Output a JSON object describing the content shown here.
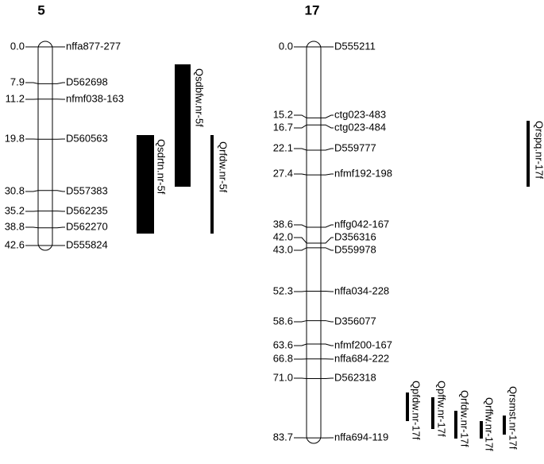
{
  "groups": [
    {
      "title": "5",
      "markers": [
        {
          "position": "0.0",
          "name": "nffa877-277"
        },
        {
          "position": "7.9",
          "name": "D562698"
        },
        {
          "position": "11.2",
          "name": "nfmf038-163"
        },
        {
          "position": "19.8",
          "name": "D560563"
        },
        {
          "position": "30.8",
          "name": "D557383"
        },
        {
          "position": "35.2",
          "name": "D562235"
        },
        {
          "position": "38.8",
          "name": "D562270"
        },
        {
          "position": "42.6",
          "name": "D555824"
        }
      ],
      "qtls": [
        "Qsdbfw.nr-5f",
        "Qsdrtn.nr-5f",
        "Qrfdw.nr-5f"
      ]
    },
    {
      "title": "17",
      "markers": [
        {
          "position": "0.0",
          "name": "D555211"
        },
        {
          "position": "15.2",
          "name": "ctg023-483"
        },
        {
          "position": "16.7",
          "name": "ctg023-484"
        },
        {
          "position": "22.1",
          "name": "D559777"
        },
        {
          "position": "27.4",
          "name": "nfmf192-198"
        },
        {
          "position": "38.6",
          "name": "nffg042-167"
        },
        {
          "position": "42.0",
          "name": "D356316"
        },
        {
          "position": "43.0",
          "name": "D559978"
        },
        {
          "position": "52.3",
          "name": "nffa034-228"
        },
        {
          "position": "58.6",
          "name": "D356077"
        },
        {
          "position": "63.6",
          "name": "nfmf200-167"
        },
        {
          "position": "66.8",
          "name": "nffa684-222"
        },
        {
          "position": "71.0",
          "name": "D562318"
        },
        {
          "position": "83.7",
          "name": "nffa694-119"
        }
      ],
      "qtls": [
        "Qrspq.nr-17f",
        "Qpfdw.nr-17f",
        "Qpffw.nr-17f",
        "Qrfdw.nr-17f",
        "Qrffw.nr-17f",
        "Qrsmst.nr-17f"
      ]
    }
  ]
}
